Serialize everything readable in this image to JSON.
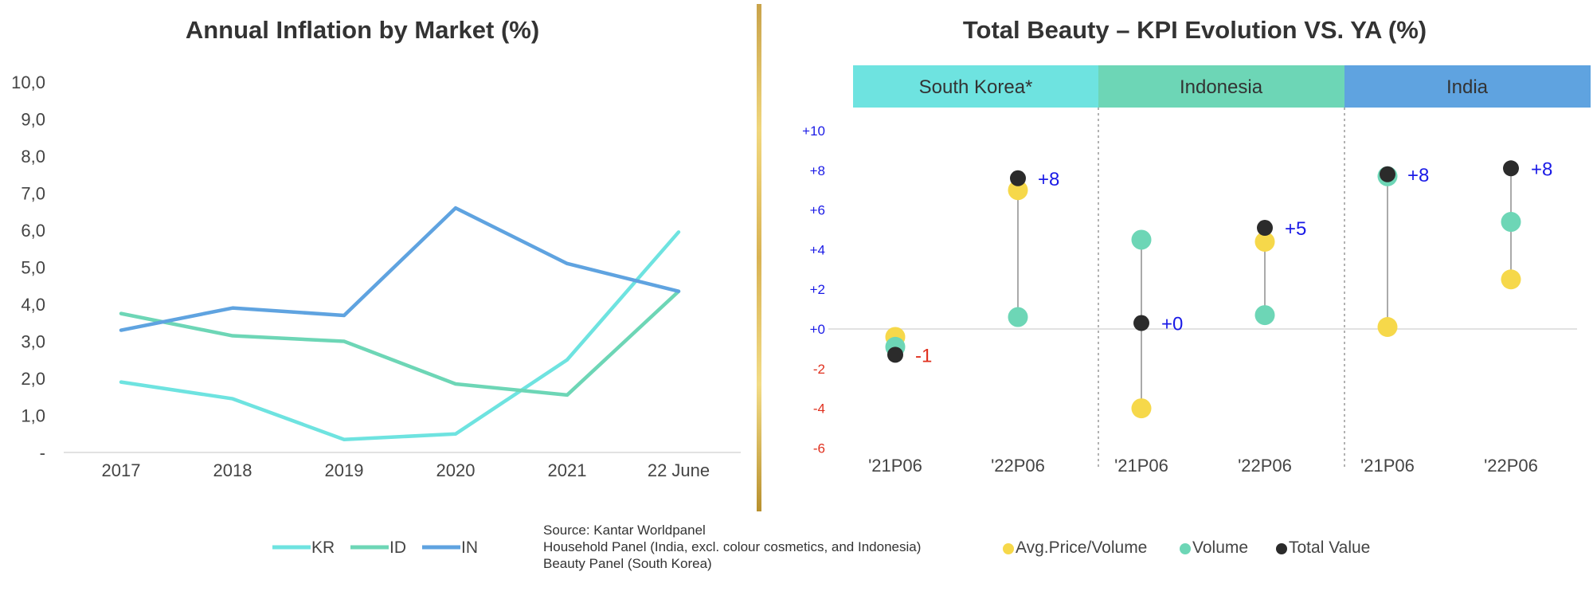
{
  "chart_data": [
    {
      "type": "line",
      "title": "Annual Inflation by Market (%)",
      "categories": [
        "2017",
        "2018",
        "2019",
        "2020",
        "2021",
        "22 June"
      ],
      "y_ticks": [
        "-",
        "1,0",
        "2,0",
        "3,0",
        "4,0",
        "5,0",
        "6,0",
        "7,0",
        "8,0",
        "9,0",
        "10,0"
      ],
      "ylim": [
        0,
        10
      ],
      "grid": false,
      "legend_position": "bottom",
      "series": [
        {
          "name": "KR",
          "color": "#6ee3e0",
          "values": [
            1.9,
            1.45,
            0.35,
            0.5,
            2.5,
            5.95
          ]
        },
        {
          "name": "ID",
          "color": "#6dd6b6",
          "values": [
            3.75,
            3.15,
            3.0,
            1.85,
            1.55,
            4.35
          ]
        },
        {
          "name": "IN",
          "color": "#5fa3e0",
          "values": [
            3.3,
            3.9,
            3.7,
            6.6,
            5.1,
            4.35
          ]
        }
      ]
    },
    {
      "type": "scatter",
      "title": "Total Beauty – KPI Evolution VS. YA (%)",
      "y_ticks": [
        "+10",
        "+8",
        "+6",
        "+4",
        "+2",
        "+0",
        "-2",
        "-4",
        "-6"
      ],
      "ylim": [
        -6,
        10
      ],
      "markets": [
        {
          "name": "South Korea*",
          "color": "#6ee3e0"
        },
        {
          "name": "Indonesia",
          "color": "#6dd6b6"
        },
        {
          "name": "India",
          "color": "#5fa3e0"
        }
      ],
      "periods": [
        "'21P06",
        "'22P06"
      ],
      "series_colors": {
        "avg_price": "#f6d84a",
        "volume": "#6dd6b6",
        "total_value": "#2b2b2b"
      },
      "points": [
        {
          "market": "South Korea*",
          "period": "'21P06",
          "avg_price": -0.4,
          "volume": -0.9,
          "total_value": -1.3,
          "label": "-1",
          "label_color": "#e0301e"
        },
        {
          "market": "South Korea*",
          "period": "'22P06",
          "avg_price": 7.0,
          "volume": 0.6,
          "total_value": 7.6,
          "label": "+8",
          "label_color": "#1a1ae6"
        },
        {
          "market": "Indonesia",
          "period": "'21P06",
          "avg_price": -4.0,
          "volume": 4.5,
          "total_value": 0.3,
          "label": "+0",
          "label_color": "#1a1ae6"
        },
        {
          "market": "Indonesia",
          "period": "'22P06",
          "avg_price": 4.4,
          "volume": 0.7,
          "total_value": 5.1,
          "label": "+5",
          "label_color": "#1a1ae6"
        },
        {
          "market": "India",
          "period": "'21P06",
          "avg_price": 0.1,
          "volume": 7.7,
          "total_value": 7.8,
          "label": "+8",
          "label_color": "#1a1ae6"
        },
        {
          "market": "India",
          "period": "'22P06",
          "avg_price": 2.5,
          "volume": 5.4,
          "total_value": 8.1,
          "label": "+8",
          "label_color": "#1a1ae6"
        }
      ]
    }
  ],
  "legend_left": [
    "KR",
    "ID",
    "IN"
  ],
  "legend_right": [
    "Avg.Price/Volume",
    "Volume",
    "Total Value"
  ],
  "source_lines": [
    "Source: Kantar Worldpanel",
    "Household Panel (India, excl. colour cosmetics, and Indonesia)",
    "Beauty Panel (South Korea)"
  ],
  "colors": {
    "divider_gold": "#c9a34a",
    "positive_tick": "#1a1ae6",
    "negative_tick": "#e0301e"
  }
}
